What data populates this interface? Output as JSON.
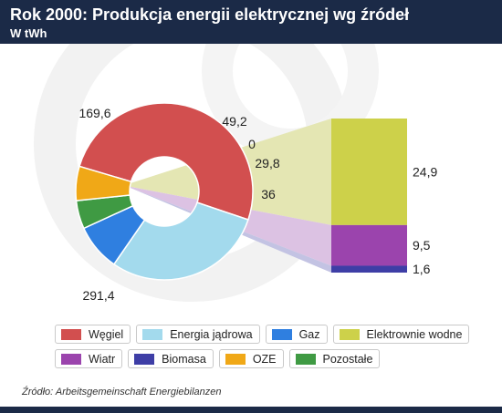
{
  "header": {
    "title": "Rok 2000: Produkcja energii elektrycznej wg źródeł",
    "subtitle": "W tWh"
  },
  "chart_data": {
    "type": "pie",
    "variant": "doughnut with bar-of-pie breakdown",
    "donut": [
      {
        "name": "Węgiel",
        "value": 291.4,
        "label": "291,4",
        "color": "#d24f4f"
      },
      {
        "name": "Energia jądrowa",
        "value": 169.6,
        "label": "169,6",
        "color": "#a3daed"
      },
      {
        "name": "Gaz",
        "value": 49.2,
        "label": "49,2",
        "color": "#2f7fe0"
      },
      {
        "name": "Pozostałe",
        "value": 0,
        "label": "0",
        "color": "#3f9a43"
      },
      {
        "name": "Pozostałe",
        "value": 29.8,
        "label": "29,8",
        "color": "#3f9a43"
      },
      {
        "name": "OZE",
        "value": 36,
        "label": "36",
        "color": "#f0a817"
      }
    ],
    "breakdown": [
      {
        "name": "Elektrownie wodne",
        "value": 24.9,
        "label": "24,9",
        "color": "#cdd14a"
      },
      {
        "name": "Wiatr",
        "value": 9.5,
        "label": "9,5",
        "color": "#9b44ad"
      },
      {
        "name": "Biomasa",
        "value": 1.6,
        "label": "1,6",
        "color": "#3e3ea6"
      }
    ]
  },
  "legend": [
    [
      {
        "label": "Węgiel",
        "color": "#d24f4f"
      },
      {
        "label": "Energia jądrowa",
        "color": "#a3daed"
      },
      {
        "label": "Gaz",
        "color": "#2f7fe0"
      },
      {
        "label": "Elektrownie wodne",
        "color": "#cdd14a"
      }
    ],
    [
      {
        "label": "Wiatr",
        "color": "#9b44ad"
      },
      {
        "label": "Biomasa",
        "color": "#3e3ea6"
      },
      {
        "label": "OZE",
        "color": "#f0a817"
      },
      {
        "label": "Pozostałe",
        "color": "#3f9a43"
      }
    ]
  ],
  "source": "Źródło: Arbeitsgemeinschaft Energiebilanzen"
}
